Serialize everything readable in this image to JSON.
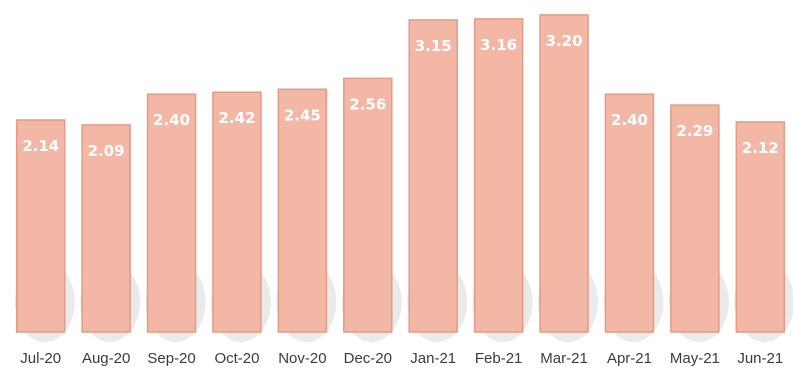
{
  "chart_data": {
    "type": "bar",
    "categories": [
      "Jul-20",
      "Aug-20",
      "Sep-20",
      "Oct-20",
      "Nov-20",
      "Dec-20",
      "Jan-21",
      "Feb-21",
      "Mar-21",
      "Apr-21",
      "May-21",
      "Jun-21"
    ],
    "values": [
      2.14,
      2.09,
      2.4,
      2.42,
      2.45,
      2.56,
      3.15,
      3.16,
      3.2,
      2.4,
      2.29,
      2.12
    ],
    "data_labels": [
      "2.14",
      "2.09",
      "2.40",
      "2.42",
      "2.45",
      "2.56",
      "3.15",
      "3.16",
      "3.20",
      "2.40",
      "2.29",
      "2.12"
    ],
    "title": "",
    "xlabel": "",
    "ylabel": "",
    "ylim": [
      0,
      3.25
    ],
    "grid": false,
    "legend": "none",
    "colors": {
      "bar_fill": "#f3b7a6",
      "bar_edge": "#e39b86",
      "value_label": "#ffffff",
      "tick_label": "#3b3b3b"
    }
  }
}
